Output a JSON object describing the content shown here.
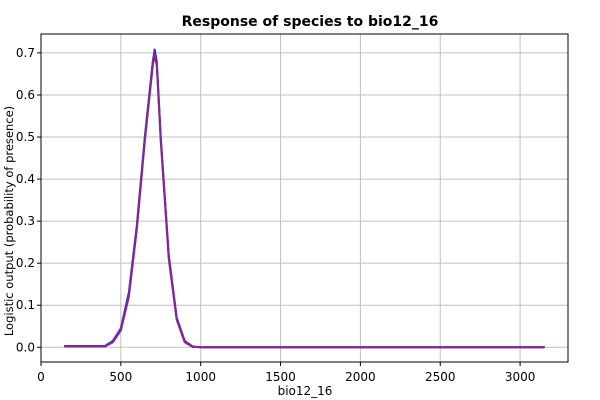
{
  "chart_data": {
    "type": "line",
    "title": "Response of species to bio12_16",
    "xlabel": "bio12_16",
    "ylabel": "Logistic output (probability of presence)",
    "xlim": [
      0,
      3300
    ],
    "ylim": [
      -0.035,
      0.745
    ],
    "x_ticks": [
      0,
      500,
      1000,
      1500,
      2000,
      2500,
      3000
    ],
    "y_ticks": [
      0.0,
      0.1,
      0.2,
      0.3,
      0.4,
      0.5,
      0.6,
      0.7
    ],
    "y_tick_labels": [
      "0.0",
      "0.1",
      "0.2",
      "0.3",
      "0.4",
      "0.5",
      "0.6",
      "0.7"
    ],
    "grid": true,
    "series": [
      {
        "color": "#2222dd",
        "x": [
          150,
          400,
          450,
          500,
          550,
          600,
          650,
          700,
          712,
          725,
          750,
          800,
          850,
          900,
          950,
          1000,
          1500,
          2000,
          2500,
          3150
        ],
        "y": [
          0.003,
          0.003,
          0.015,
          0.045,
          0.13,
          0.29,
          0.5,
          0.68,
          0.708,
          0.68,
          0.5,
          0.22,
          0.07,
          0.015,
          0.002,
          0.0,
          0.0,
          0.0,
          0.0,
          0.0
        ]
      },
      {
        "color": "#cc1144",
        "x": [
          150,
          400,
          450,
          500,
          550,
          600,
          650,
          700,
          712,
          725,
          750,
          800,
          850,
          900,
          950,
          1000,
          1500,
          2000,
          2500,
          3150
        ],
        "y": [
          0.002,
          0.002,
          0.012,
          0.04,
          0.12,
          0.28,
          0.49,
          0.67,
          0.695,
          0.67,
          0.49,
          0.21,
          0.065,
          0.012,
          0.001,
          0.0,
          0.0,
          0.0,
          0.0,
          0.0
        ]
      },
      {
        "color": "#7a2a9a",
        "x": [
          150,
          400,
          450,
          500,
          550,
          600,
          650,
          700,
          712,
          725,
          750,
          800,
          850,
          900,
          950,
          1000,
          1500,
          2000,
          2500,
          3150
        ],
        "y": [
          0.0025,
          0.0025,
          0.013,
          0.042,
          0.125,
          0.285,
          0.495,
          0.675,
          0.7,
          0.675,
          0.495,
          0.215,
          0.067,
          0.013,
          0.0015,
          0.0,
          0.0,
          0.0,
          0.0,
          0.0
        ]
      }
    ]
  }
}
